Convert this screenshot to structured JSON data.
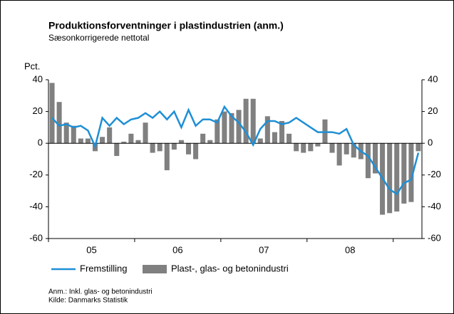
{
  "chart_data": {
    "type": "bar-line",
    "title": "Produktionsforventninger i plastindustrien (anm.)",
    "subtitle": "Sæsonkorrigerede nettotal",
    "ylabel": "Pct.",
    "categories": [
      null,
      null,
      null,
      null,
      null,
      null,
      "05",
      null,
      null,
      null,
      null,
      null,
      null,
      null,
      null,
      null,
      null,
      null,
      "06",
      null,
      null,
      null,
      null,
      null,
      null,
      null,
      null,
      null,
      null,
      null,
      "07",
      null,
      null,
      null,
      null,
      null,
      null,
      null,
      null,
      null,
      null,
      null,
      "08",
      null,
      null,
      null,
      null,
      null,
      null,
      null,
      null,
      null
    ],
    "series": [
      {
        "name": "Plast-, glas- og betonindustri",
        "kind": "bar",
        "color": "#808080",
        "values": [
          38,
          26,
          13,
          11,
          3,
          3,
          -5,
          4,
          10,
          -8,
          1,
          6,
          2,
          13,
          -6,
          -5,
          -17,
          -4,
          2,
          -7,
          -10,
          6,
          2,
          15,
          20,
          19,
          21,
          28,
          28,
          3,
          17,
          7,
          14,
          6,
          -5,
          -6,
          -5,
          -2,
          15,
          -6,
          -14,
          -7,
          -9,
          -10,
          -22,
          -19,
          -45,
          -44,
          -43,
          -38,
          -37,
          -5
        ]
      },
      {
        "name": "Fremstilling",
        "kind": "line",
        "color": "#1e8fd5",
        "values": [
          16,
          11,
          12,
          10,
          11,
          8,
          -2,
          16,
          11,
          16,
          12,
          15,
          16,
          19,
          16,
          20,
          15,
          20,
          10,
          21,
          11,
          15,
          15,
          13,
          23,
          17,
          13,
          7,
          -1,
          9,
          14,
          14,
          12,
          13,
          16,
          13,
          10,
          7,
          7,
          7,
          6,
          9,
          -1,
          -5,
          -8,
          -15,
          -22,
          -29,
          -32,
          -25,
          -23,
          -6
        ]
      }
    ],
    "ylim": [
      -60,
      40
    ],
    "yticks": [
      -60,
      -40,
      -20,
      0,
      20,
      40
    ],
    "y2lim": [
      -60,
      40
    ],
    "y2ticks": [
      -60,
      -40,
      -20,
      0,
      20,
      40
    ],
    "notes": [
      "Anm.: Inkl. glas- og betonindustri",
      "Kilde: Danmarks Statistik"
    ]
  }
}
